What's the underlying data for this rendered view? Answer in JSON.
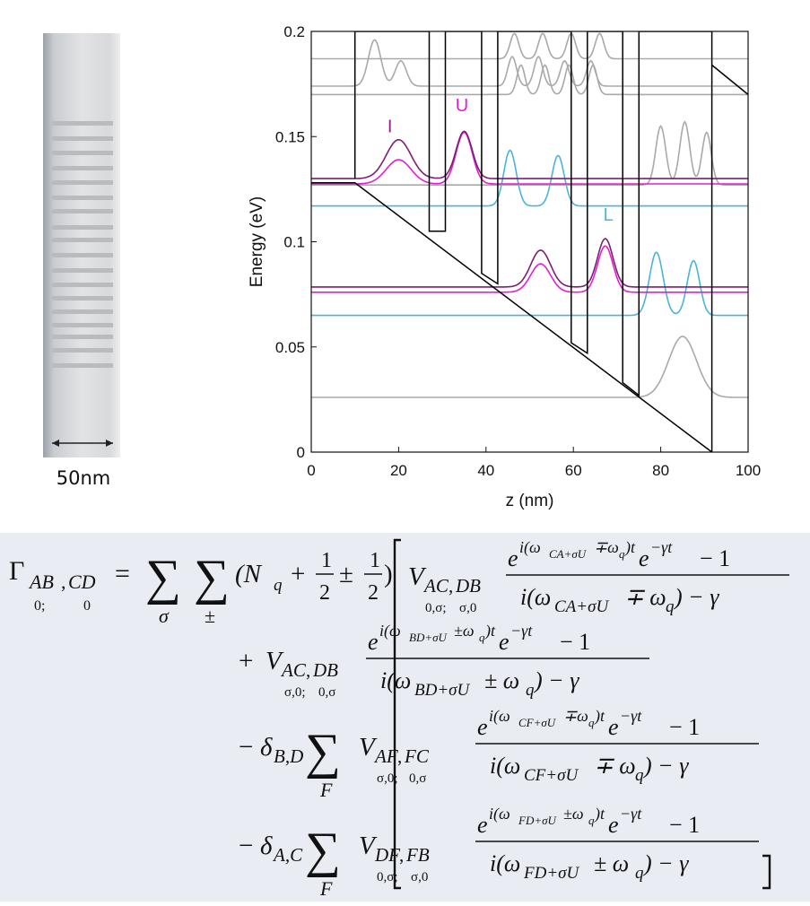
{
  "structure": {
    "scale_label": "50nm"
  },
  "chart_data": {
    "type": "line",
    "xlabel": "z (nm)",
    "ylabel": "Energy (eV)",
    "xlim": [
      0,
      100
    ],
    "ylim": [
      0,
      0.2
    ],
    "xticks": [
      "0",
      "20",
      "40",
      "60",
      "80",
      "100"
    ],
    "yticks": [
      "0",
      "0.05",
      "0.1",
      "0.15",
      "0.2"
    ],
    "annotations": [
      {
        "text": "I",
        "x": 18,
        "y": 0.152,
        "color": "#9b1c91"
      },
      {
        "text": "U",
        "x": 34.5,
        "y": 0.162,
        "color": "#e020d0"
      },
      {
        "text": "L",
        "x": 68,
        "y": 0.11,
        "color": "#4ab4d8"
      }
    ],
    "colors": {
      "band": "#000000",
      "gray": "#a9a9a9",
      "cyan": "#4ab4d8",
      "purple": "#7b1f73",
      "magenta": "#e020d0"
    },
    "conduction_band": [
      {
        "x": 10.0,
        "y": 0.13
      },
      {
        "x": 10.0,
        "y": 0.2
      },
      {
        "x": 27.0,
        "y": 0.2
      },
      {
        "x": 27.0,
        "y": 0.105
      },
      {
        "x": 30.7,
        "y": 0.105
      },
      {
        "x": 30.7,
        "y": 0.2
      },
      {
        "x": 39.0,
        "y": 0.2
      },
      {
        "x": 39.0,
        "y": 0.085
      },
      {
        "x": 42.7,
        "y": 0.08
      },
      {
        "x": 42.7,
        "y": 0.2
      },
      {
        "x": 59.5,
        "y": 0.2
      },
      {
        "x": 59.5,
        "y": 0.052
      },
      {
        "x": 63.2,
        "y": 0.047
      },
      {
        "x": 63.2,
        "y": 0.2
      },
      {
        "x": 71.3,
        "y": 0.2
      },
      {
        "x": 71.3,
        "y": 0.033
      },
      {
        "x": 75.0,
        "y": 0.027
      },
      {
        "x": 75.0,
        "y": 0.2
      },
      {
        "x": 91.7,
        "y": 0.2
      },
      {
        "x": 91.7,
        "y": 0.0
      }
    ],
    "band_slope": [
      {
        "x": 0.0,
        "y": 0.128
      },
      {
        "x": 10.0,
        "y": 0.128
      },
      {
        "x": 91.7,
        "y": 0.0
      }
    ],
    "band_tail": [
      {
        "x": 91.7,
        "y": 0.184
      },
      {
        "x": 100.0,
        "y": 0.17
      }
    ],
    "levels": [
      {
        "name": "",
        "color": "#a9a9a9",
        "energy": 0.026,
        "peaks": [
          {
            "c": 85.0,
            "a": 0.029,
            "w": 4.5
          }
        ],
        "wiggle": {
          "from": 75.0,
          "to": 92.0
        }
      },
      {
        "name": "",
        "color": "#4ab4d8",
        "energy": 0.065,
        "peaks": [
          {
            "c": 79.0,
            "a": 0.03,
            "w": 2.2
          },
          {
            "c": 87.5,
            "a": 0.026,
            "w": 2.0
          }
        ],
        "wiggle": {
          "from": 75.0,
          "to": 92.0
        }
      },
      {
        "name": "",
        "color": "#e020d0",
        "energy": 0.076,
        "peaks": [
          {
            "c": 52.5,
            "a": 0.0135,
            "w": 3.2
          },
          {
            "c": 67.3,
            "a": 0.022,
            "w": 2.5
          }
        ],
        "wiggle": {
          "from": 42.7,
          "to": 75.0
        }
      },
      {
        "name": "",
        "color": "#7b1f73",
        "energy": 0.0785,
        "peaks": [
          {
            "c": 52.5,
            "a": 0.0175,
            "w": 3.2
          },
          {
            "c": 67.3,
            "a": 0.023,
            "w": 2.5
          }
        ],
        "wiggle": {
          "from": 42.7,
          "to": 75.0
        }
      },
      {
        "name": "L",
        "color": "#4ab4d8",
        "energy": 0.117,
        "peaks": [
          {
            "c": 45.5,
            "a": 0.0265,
            "w": 2.0
          },
          {
            "c": 56.5,
            "a": 0.024,
            "w": 2.0
          }
        ],
        "wiggle": {
          "from": 42.7,
          "to": 59.5
        }
      },
      {
        "name": "",
        "color": "#a9a9a9",
        "energy": 0.127,
        "peaks": [
          {
            "c": 80.0,
            "a": 0.028,
            "w": 1.6
          },
          {
            "c": 85.5,
            "a": 0.03,
            "w": 1.6
          },
          {
            "c": 90.5,
            "a": 0.025,
            "w": 1.5
          }
        ],
        "wiggle": {
          "from": 75.0,
          "to": 92.0
        }
      },
      {
        "name": "U",
        "color": "#e020d0",
        "energy": 0.1275,
        "peaks": [
          {
            "c": 20.0,
            "a": 0.0115,
            "w": 4.0
          },
          {
            "c": 35.0,
            "a": 0.0245,
            "w": 2.6
          }
        ],
        "wiggle": {
          "from": 10.0,
          "to": 42.7
        }
      },
      {
        "name": "I",
        "color": "#7b1f73",
        "energy": 0.13,
        "peaks": [
          {
            "c": 20.0,
            "a": 0.0185,
            "w": 4.0
          },
          {
            "c": 35.0,
            "a": 0.0225,
            "w": 2.6
          }
        ],
        "wiggle": {
          "from": 10.0,
          "to": 42.7
        }
      },
      {
        "name": "",
        "color": "#a9a9a9",
        "energy": 0.17,
        "peaks": [
          {
            "c": 48.0,
            "a": 0.014,
            "w": 1.3
          },
          {
            "c": 53.5,
            "a": 0.014,
            "w": 1.3
          },
          {
            "c": 59.0,
            "a": 0.014,
            "w": 1.3
          },
          {
            "c": 64.5,
            "a": 0.014,
            "w": 1.3
          }
        ],
        "wiggle": {
          "from": 42.7,
          "to": 100.0
        }
      },
      {
        "name": "",
        "color": "#a9a9a9",
        "energy": 0.174,
        "peaks": [
          {
            "c": 14.5,
            "a": 0.022,
            "w": 2.0
          },
          {
            "c": 20.5,
            "a": 0.012,
            "w": 1.8
          },
          {
            "c": 46.0,
            "a": 0.014,
            "w": 1.4
          },
          {
            "c": 52.0,
            "a": 0.014,
            "w": 1.4
          },
          {
            "c": 58.0,
            "a": 0.012,
            "w": 1.4
          },
          {
            "c": 64.0,
            "a": 0.012,
            "w": 1.4
          }
        ],
        "wiggle": {
          "from": 10.0,
          "to": 100.0
        }
      },
      {
        "name": "",
        "color": "#a9a9a9",
        "energy": 0.187,
        "peaks": [
          {
            "c": 46.5,
            "a": 0.012,
            "w": 1.4
          },
          {
            "c": 53.0,
            "a": 0.012,
            "w": 1.4
          },
          {
            "c": 59.5,
            "a": 0.012,
            "w": 1.4
          },
          {
            "c": 66.0,
            "a": 0.012,
            "w": 1.4
          }
        ],
        "wiggle": {
          "from": 42.7,
          "to": 100.0
        }
      }
    ]
  },
  "equation": {
    "gamma": "Γ",
    "sub_AB": "AB",
    "sub_CD": "CD",
    "sub_comma": ",",
    "sub_0semi": "0;",
    "sub_0": "0",
    "equals": "=",
    "sigma_sub": "σ",
    "pm_sub": "±",
    "occupation": "(N",
    "q": "q",
    "plus": "+",
    "half_num": "1",
    "half_den": "2",
    "pm": "±",
    "close_paren": ")",
    "V": "V",
    "AC": "AC",
    "DB": "DB",
    "AF": "AF",
    "FC": "FC",
    "DF": "DF",
    "FB": "FB",
    "s_0sigma_semi": "0,σ;",
    "s_sigma0": "σ,0",
    "s_sigma0_semi": "σ,0;",
    "s_0sigma": "0,σ",
    "t1_exp": "i(ω",
    "t1_exp_sub": "CA+σU",
    "t1_exp_rest": "∓ω",
    "t1_exp_tail": ")t",
    "e": "e",
    "decay": "−γt",
    "minus_one": "− 1",
    "t1_den": "i(ω",
    "t1_den_sub": "CA+σU",
    "t1_den_rest": "∓ ω",
    "t1_den_tail": ") − γ",
    "t2_exp_sub": "BD+σU",
    "t2_exp_rest": "±ω",
    "t2_den_sub": "BD+σU",
    "t2_den_rest": "± ω",
    "t3_exp_sub": "CF+σU",
    "t3_den_sub": "CF+σU",
    "t4_exp_sub": "FD+σU",
    "t4_den_sub": "FD+σU",
    "minus": "−",
    "delta": "δ",
    "BD": "B,D",
    "AC_delta": "A,C",
    "F": "F",
    "sum": "∑"
  }
}
